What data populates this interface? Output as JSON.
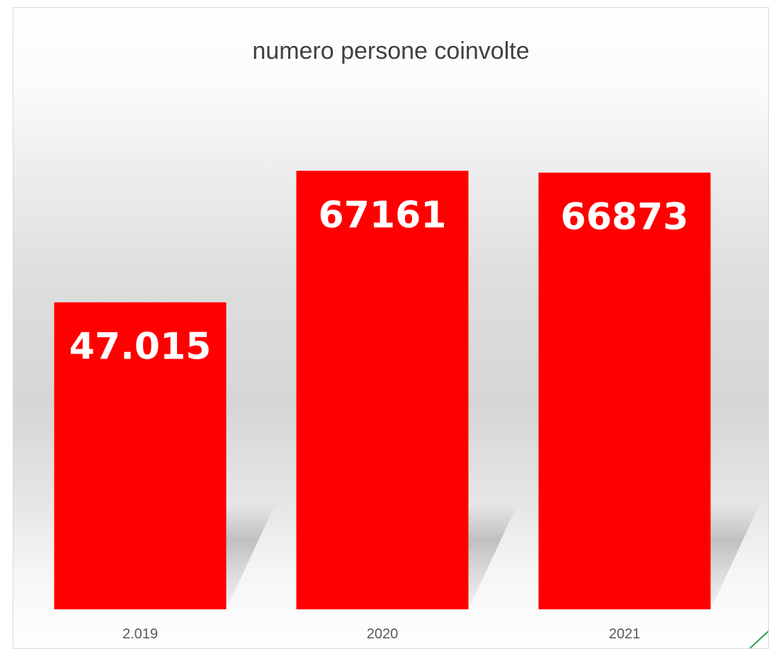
{
  "chart_data": {
    "type": "bar",
    "title": "numero persone coinvolte",
    "categories": [
      "2.019",
      "2020",
      "2021"
    ],
    "values": [
      47015,
      67161,
      66873
    ],
    "data_labels": [
      "47.015",
      "67161",
      "66873"
    ],
    "xlabel": "",
    "ylabel": "",
    "ylim": [
      0,
      67161
    ],
    "grid": false,
    "legend": "none",
    "bar_color": "#ff0000",
    "label_color": "#ffffff"
  }
}
